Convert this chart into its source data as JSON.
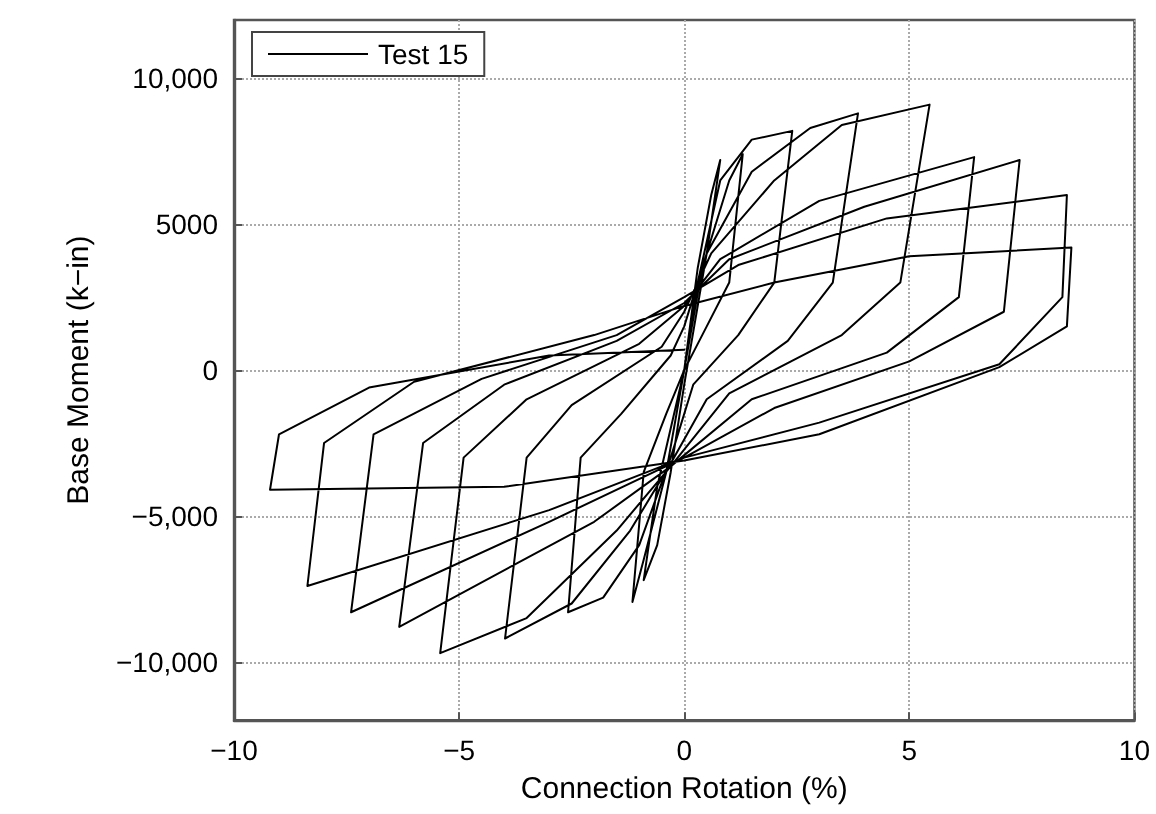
{
  "chart_data": {
    "type": "line",
    "xlabel": "Connection Rotation (%)",
    "ylabel": "Base Moment (k−in)",
    "xlim": [
      -10,
      10
    ],
    "xticks": [
      {
        "value": -10,
        "label": "−10"
      },
      {
        "value": -5,
        "label": "−5"
      },
      0,
      5,
      10
    ],
    "ylim": [
      -12000,
      12000
    ],
    "yticks": [
      {
        "value": -10000,
        "label": "−10,000"
      },
      {
        "value": -5000,
        "label": "−5,000"
      },
      0,
      5000,
      {
        "value": 10000,
        "label": "10,000"
      }
    ],
    "grid": true,
    "legend": "top left",
    "marker": "none",
    "line_style": "solid",
    "series": [
      {
        "name": "Test 15",
        "color": "#000000",
        "x": [
          0,
          0.3,
          0.6,
          0.8,
          0.5,
          0,
          -0.3,
          -0.6,
          -0.9,
          -0.6,
          0,
          0.4,
          1.0,
          1.3,
          1.0,
          0.5,
          0,
          -0.4,
          -0.9,
          -1.15,
          -0.9,
          -0.4,
          0,
          0.3,
          0.8,
          1.5,
          2.4,
          2.0,
          1.2,
          0.2,
          -0.3,
          -1.0,
          -1.8,
          -2.58,
          -2.3,
          -1.4,
          -0.3,
          0,
          0.5,
          1.5,
          2.8,
          3.86,
          3.3,
          2.3,
          0.5,
          -0.3,
          -1.2,
          -2.5,
          -3.98,
          -3.5,
          -2.5,
          -0.5,
          0,
          0.6,
          2.0,
          3.5,
          5.45,
          4.8,
          3.5,
          1,
          -0.3,
          -1.5,
          -3.5,
          -5.42,
          -4.9,
          -3.5,
          -1,
          0,
          0.8,
          3,
          6.44,
          6.1,
          4.5,
          1.5,
          -0.3,
          -2,
          -6.33,
          -5.8,
          -4,
          -1.5,
          0,
          1,
          4,
          7.45,
          7.1,
          5,
          2,
          0,
          -3,
          -7.4,
          -6.9,
          -4.5,
          -1.5,
          0,
          1.2,
          4.5,
          8.5,
          8.4,
          7,
          3,
          0,
          -3,
          -8.37,
          -8.0,
          -6,
          -2,
          0,
          2,
          5,
          8.6,
          8.5,
          7,
          3,
          0,
          -4,
          -9.2,
          -9.0,
          -7,
          -3,
          0
        ],
        "values": [
          0,
          3500,
          6000,
          7200,
          4000,
          -500,
          -3500,
          -6000,
          -7200,
          -4000,
          0,
          3500,
          6500,
          7400,
          3000,
          1500,
          0,
          -3500,
          -6500,
          -7950,
          -3500,
          -1500,
          0,
          3000,
          6500,
          7900,
          8200,
          3000,
          1200,
          -500,
          -3000,
          -6000,
          -7800,
          -8300,
          -3000,
          -1500,
          500,
          1500,
          4000,
          6800,
          8300,
          8800,
          3000,
          1000,
          -1000,
          -3200,
          -5500,
          -8000,
          -9200,
          -3000,
          -1200,
          800,
          2000,
          4000,
          6500,
          8400,
          9100,
          3000,
          1200,
          -800,
          -3300,
          -5500,
          -8500,
          -9700,
          -3000,
          -1000,
          900,
          2200,
          3800,
          5800,
          7300,
          2500,
          600,
          -1000,
          -3300,
          -5200,
          -8800,
          -2500,
          -500,
          1000,
          2300,
          3800,
          5600,
          7200,
          2000,
          300,
          -1300,
          -3000,
          -5200,
          -8300,
          -2200,
          -300,
          1200,
          2500,
          3600,
          5200,
          6000,
          2500,
          200,
          -1800,
          -3000,
          -4800,
          -7400,
          -2500,
          -400,
          1200,
          2200,
          3000,
          3900,
          4200,
          1500,
          100,
          -2200,
          -3100,
          -4000,
          -4100,
          -2200,
          -600,
          500,
          700
        ]
      }
    ]
  }
}
